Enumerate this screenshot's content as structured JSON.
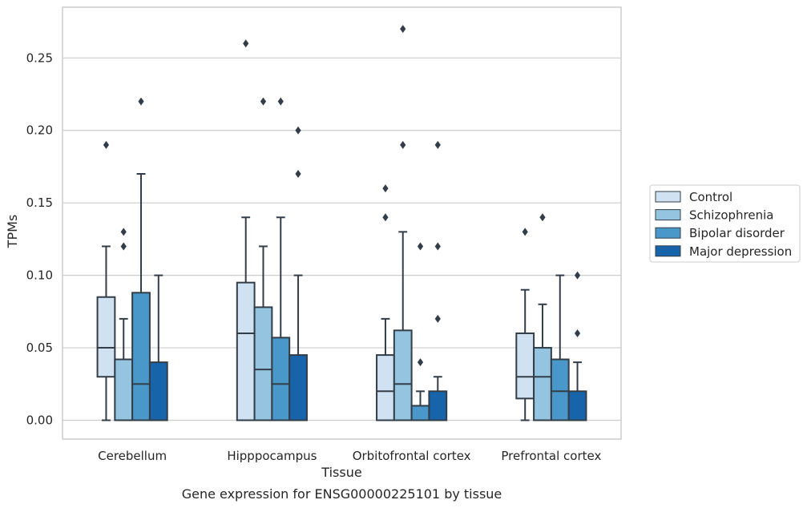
{
  "chart_data": {
    "type": "box",
    "title": "",
    "caption": "Gene expression for ENSG00000225101 by tissue",
    "xlabel": "Tissue",
    "ylabel": "TPMs",
    "ylim": [
      -0.013,
      0.285
    ],
    "yticks": [
      0.0,
      0.05,
      0.1,
      0.15,
      0.2,
      0.25
    ],
    "ytick_labels": [
      "0.00",
      "0.05",
      "0.10",
      "0.15",
      "0.20",
      "0.25"
    ],
    "grid": "horizontal",
    "legend_position": "right",
    "categories": [
      "Cerebellum",
      "Hipppocampus",
      "Orbitofrontal cortex",
      "Prefrontal cortex"
    ],
    "series": [
      {
        "name": "Control",
        "color": "#d0e1f2",
        "boxes": [
          {
            "whisker_low": 0.0,
            "q1": 0.03,
            "median": 0.05,
            "q3": 0.085,
            "whisker_high": 0.12,
            "outliers": [
              0.19
            ]
          },
          {
            "whisker_low": 0.0,
            "q1": 0.0,
            "median": 0.06,
            "q3": 0.095,
            "whisker_high": 0.14,
            "outliers": [
              0.26
            ]
          },
          {
            "whisker_low": 0.0,
            "q1": 0.0,
            "median": 0.02,
            "q3": 0.045,
            "whisker_high": 0.07,
            "outliers": [
              0.14,
              0.16
            ]
          },
          {
            "whisker_low": 0.0,
            "q1": 0.015,
            "median": 0.03,
            "q3": 0.06,
            "whisker_high": 0.09,
            "outliers": [
              0.13
            ]
          }
        ]
      },
      {
        "name": "Schizophrenia",
        "color": "#94c4df",
        "boxes": [
          {
            "whisker_low": 0.0,
            "q1": 0.0,
            "median": 0.0,
            "q3": 0.042,
            "whisker_high": 0.07,
            "outliers": [
              0.12,
              0.13
            ]
          },
          {
            "whisker_low": 0.0,
            "q1": 0.0,
            "median": 0.035,
            "q3": 0.078,
            "whisker_high": 0.12,
            "outliers": [
              0.22
            ]
          },
          {
            "whisker_low": 0.0,
            "q1": 0.0,
            "median": 0.025,
            "q3": 0.062,
            "whisker_high": 0.13,
            "outliers": [
              0.19,
              0.27
            ]
          },
          {
            "whisker_low": 0.0,
            "q1": 0.0,
            "median": 0.03,
            "q3": 0.05,
            "whisker_high": 0.08,
            "outliers": [
              0.14
            ]
          }
        ]
      },
      {
        "name": "Bipolar disorder",
        "color": "#4a98c9",
        "boxes": [
          {
            "whisker_low": 0.0,
            "q1": 0.0,
            "median": 0.025,
            "q3": 0.088,
            "whisker_high": 0.17,
            "outliers": [
              0.22
            ]
          },
          {
            "whisker_low": 0.0,
            "q1": 0.0,
            "median": 0.025,
            "q3": 0.057,
            "whisker_high": 0.14,
            "outliers": [
              0.22
            ]
          },
          {
            "whisker_low": 0.0,
            "q1": 0.0,
            "median": 0.0,
            "q3": 0.01,
            "whisker_high": 0.02,
            "outliers": [
              0.04,
              0.12
            ]
          },
          {
            "whisker_low": 0.0,
            "q1": 0.0,
            "median": 0.02,
            "q3": 0.042,
            "whisker_high": 0.1,
            "outliers": []
          }
        ]
      },
      {
        "name": "Major depression",
        "color": "#1764ab",
        "boxes": [
          {
            "whisker_low": 0.0,
            "q1": 0.0,
            "median": 0.0,
            "q3": 0.04,
            "whisker_high": 0.1,
            "outliers": []
          },
          {
            "whisker_low": 0.0,
            "q1": 0.0,
            "median": 0.0,
            "q3": 0.045,
            "whisker_high": 0.1,
            "outliers": [
              0.17,
              0.2
            ]
          },
          {
            "whisker_low": 0.0,
            "q1": 0.0,
            "median": 0.0,
            "q3": 0.02,
            "whisker_high": 0.03,
            "outliers": [
              0.07,
              0.12,
              0.19
            ]
          },
          {
            "whisker_low": 0.0,
            "q1": 0.0,
            "median": 0.0,
            "q3": 0.02,
            "whisker_high": 0.04,
            "outliers": [
              0.06,
              0.1
            ]
          }
        ]
      }
    ]
  },
  "colors": {
    "grid": "#cccccc",
    "frame": "#cccccc",
    "edge": "#333d47",
    "outlier": "#333d47"
  }
}
